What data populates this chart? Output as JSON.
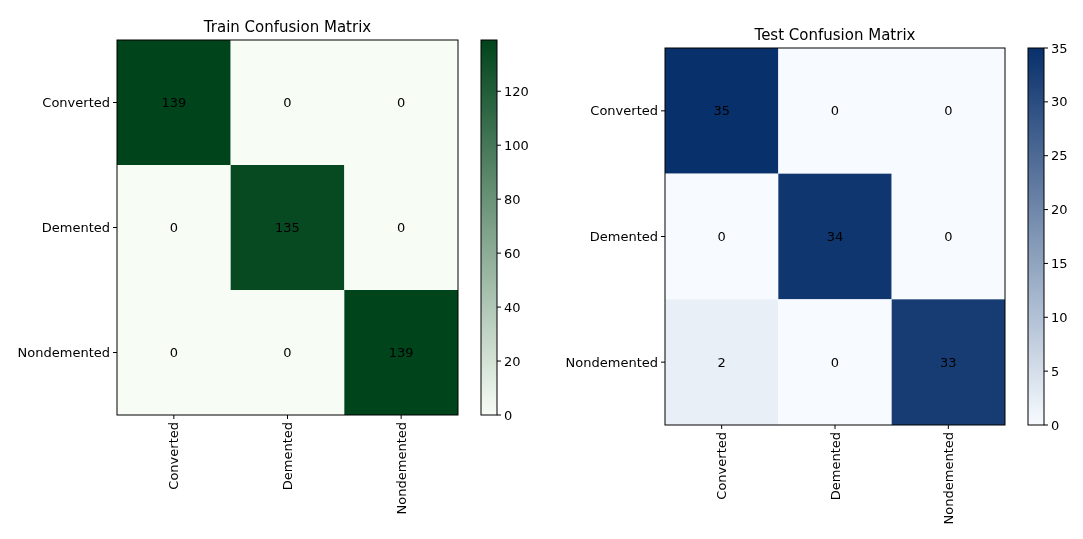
{
  "chart_data": [
    {
      "type": "heatmap",
      "title": "Train Confusion Matrix",
      "categories": [
        "Converted",
        "Demented",
        "Nondemented"
      ],
      "y_categories": [
        "Converted",
        "Demented",
        "Nondemented"
      ],
      "cells": [
        [
          139,
          0,
          0
        ],
        [
          0,
          135,
          0
        ],
        [
          0,
          0,
          139
        ]
      ],
      "data_labels": true,
      "clim": [
        0,
        139
      ],
      "cticks": [
        0,
        20,
        40,
        60,
        80,
        100,
        120
      ],
      "colors": [
        "#f7fcf5",
        "#00441b"
      ]
    },
    {
      "type": "heatmap",
      "title": "Test Confusion Matrix",
      "categories": [
        "Converted",
        "Demented",
        "Nondemented"
      ],
      "y_categories": [
        "Converted",
        "Demented",
        "Nondemented"
      ],
      "cells": [
        [
          35,
          0,
          0
        ],
        [
          0,
          34,
          0
        ],
        [
          2,
          0,
          33
        ]
      ],
      "data_labels": true,
      "clim": [
        0,
        35
      ],
      "cticks": [
        0,
        5,
        10,
        15,
        20,
        25,
        30,
        35
      ],
      "colors": [
        "#f7fbff",
        "#08306b"
      ]
    }
  ]
}
